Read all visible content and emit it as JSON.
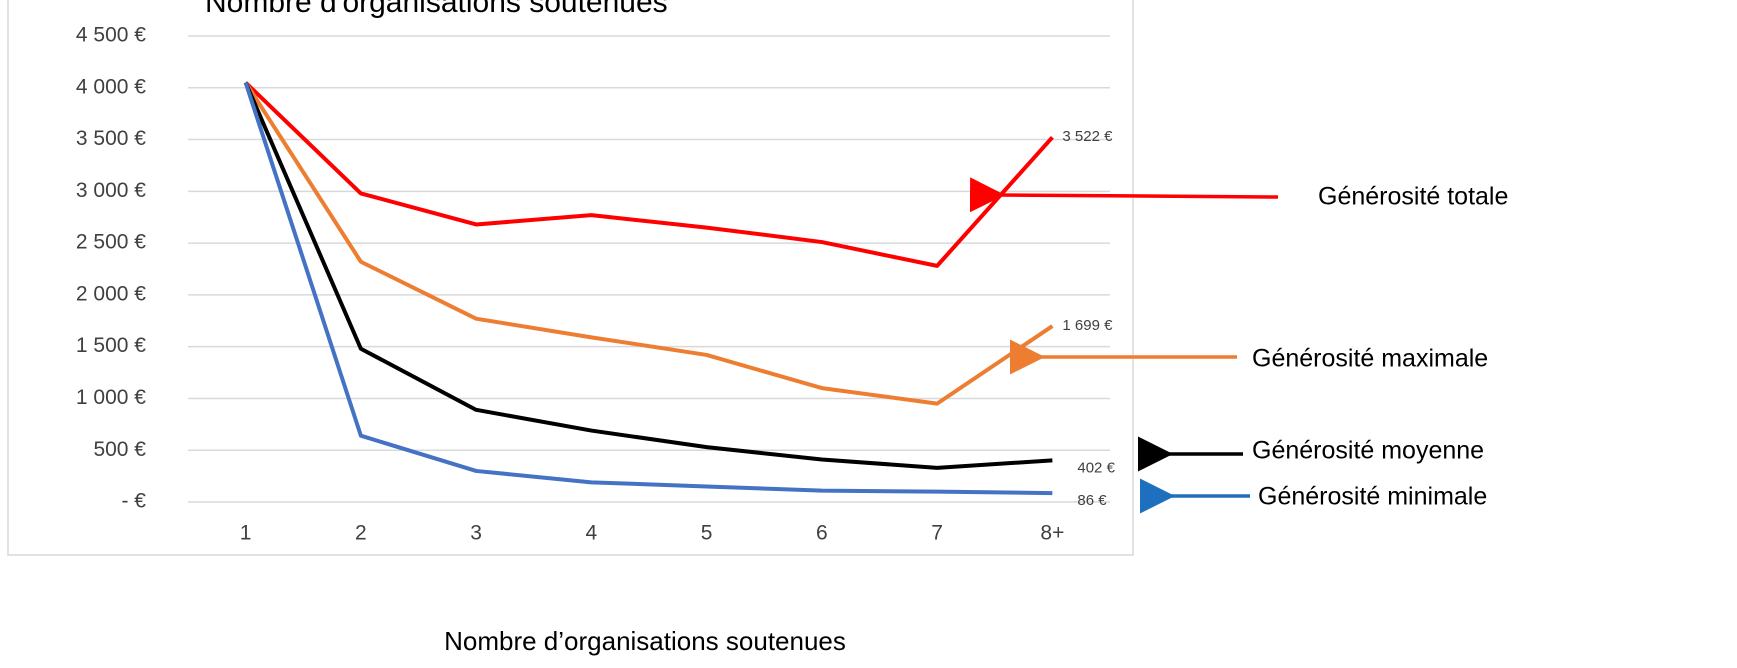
{
  "chart_data": {
    "type": "line",
    "title": "Nombre d'organisations soutenues",
    "x_label": "Nombre d’organisations soutenues",
    "categories": [
      "1",
      "2",
      "3",
      "4",
      "5",
      "6",
      "7",
      "8+"
    ],
    "ylim": [
      0,
      4500
    ],
    "yticks": [
      {
        "value": 0,
        "label": "-  €"
      },
      {
        "value": 500,
        "label": "500 €"
      },
      {
        "value": 1000,
        "label": "1 000 €"
      },
      {
        "value": 1500,
        "label": "1 500 €"
      },
      {
        "value": 2000,
        "label": "2 000 €"
      },
      {
        "value": 2500,
        "label": "2 500 €"
      },
      {
        "value": 3000,
        "label": "3 000 €"
      },
      {
        "value": 3500,
        "label": "3 500 €"
      },
      {
        "value": 4000,
        "label": "4 000 €"
      },
      {
        "value": 4500,
        "label": "4 500 €"
      }
    ],
    "grid": true,
    "series": [
      {
        "name": "Générosité totale",
        "color": "#ff0000",
        "values": [
          4050,
          2980,
          2680,
          2770,
          2650,
          2510,
          2280,
          3522
        ],
        "value_labels": [
          null,
          null,
          null,
          null,
          null,
          null,
          null,
          "3 522 €"
        ]
      },
      {
        "name": "Générosité maximale",
        "color": "#ed7d31",
        "values": [
          4050,
          2320,
          1770,
          1590,
          1420,
          1100,
          950,
          1699
        ],
        "value_labels": [
          null,
          null,
          null,
          null,
          null,
          null,
          null,
          "1 699 €"
        ]
      },
      {
        "name": "Générosité moyenne",
        "color": "#000000",
        "values": [
          4050,
          1480,
          890,
          690,
          530,
          410,
          330,
          402
        ],
        "value_labels": [
          null,
          null,
          null,
          null,
          null,
          null,
          null,
          "402 €"
        ]
      },
      {
        "name": "Générosité minimale",
        "color": "#4472c4",
        "values": [
          4050,
          640,
          300,
          190,
          150,
          110,
          100,
          86
        ],
        "value_labels": [
          null,
          null,
          null,
          null,
          null,
          null,
          null,
          "86 €"
        ]
      }
    ]
  }
}
